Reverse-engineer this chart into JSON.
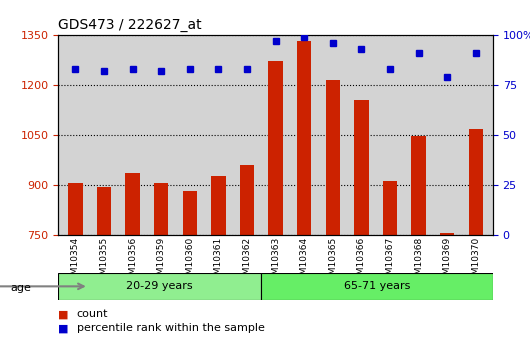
{
  "title": "GDS473 / 222627_at",
  "samples": [
    "GSM10354",
    "GSM10355",
    "GSM10356",
    "GSM10359",
    "GSM10360",
    "GSM10361",
    "GSM10362",
    "GSM10363",
    "GSM10364",
    "GSM10365",
    "GSM10366",
    "GSM10367",
    "GSM10368",
    "GSM10369",
    "GSM10370"
  ],
  "counts": [
    905,
    893,
    935,
    905,
    882,
    925,
    960,
    1270,
    1330,
    1215,
    1155,
    912,
    1045,
    755,
    1068
  ],
  "percentiles": [
    83,
    82,
    83,
    82,
    83,
    83,
    83,
    97,
    99,
    96,
    93,
    83,
    91,
    79,
    91
  ],
  "groups": [
    {
      "label": "20-29 years",
      "start": 0,
      "end": 7,
      "color": "#90ee90"
    },
    {
      "label": "65-71 years",
      "start": 7,
      "end": 15,
      "color": "#66ee66"
    }
  ],
  "ylim_left": [
    750,
    1350
  ],
  "ylim_right": [
    0,
    100
  ],
  "yticks_left": [
    750,
    900,
    1050,
    1200,
    1350
  ],
  "yticks_right": [
    0,
    25,
    50,
    75,
    100
  ],
  "bar_color": "#cc2200",
  "dot_color": "#0000cc",
  "bg_color": "#d3d3d3",
  "grid_color": "#000000",
  "age_label": "age",
  "legend_count": "count",
  "legend_percentile": "percentile rank within the sample"
}
